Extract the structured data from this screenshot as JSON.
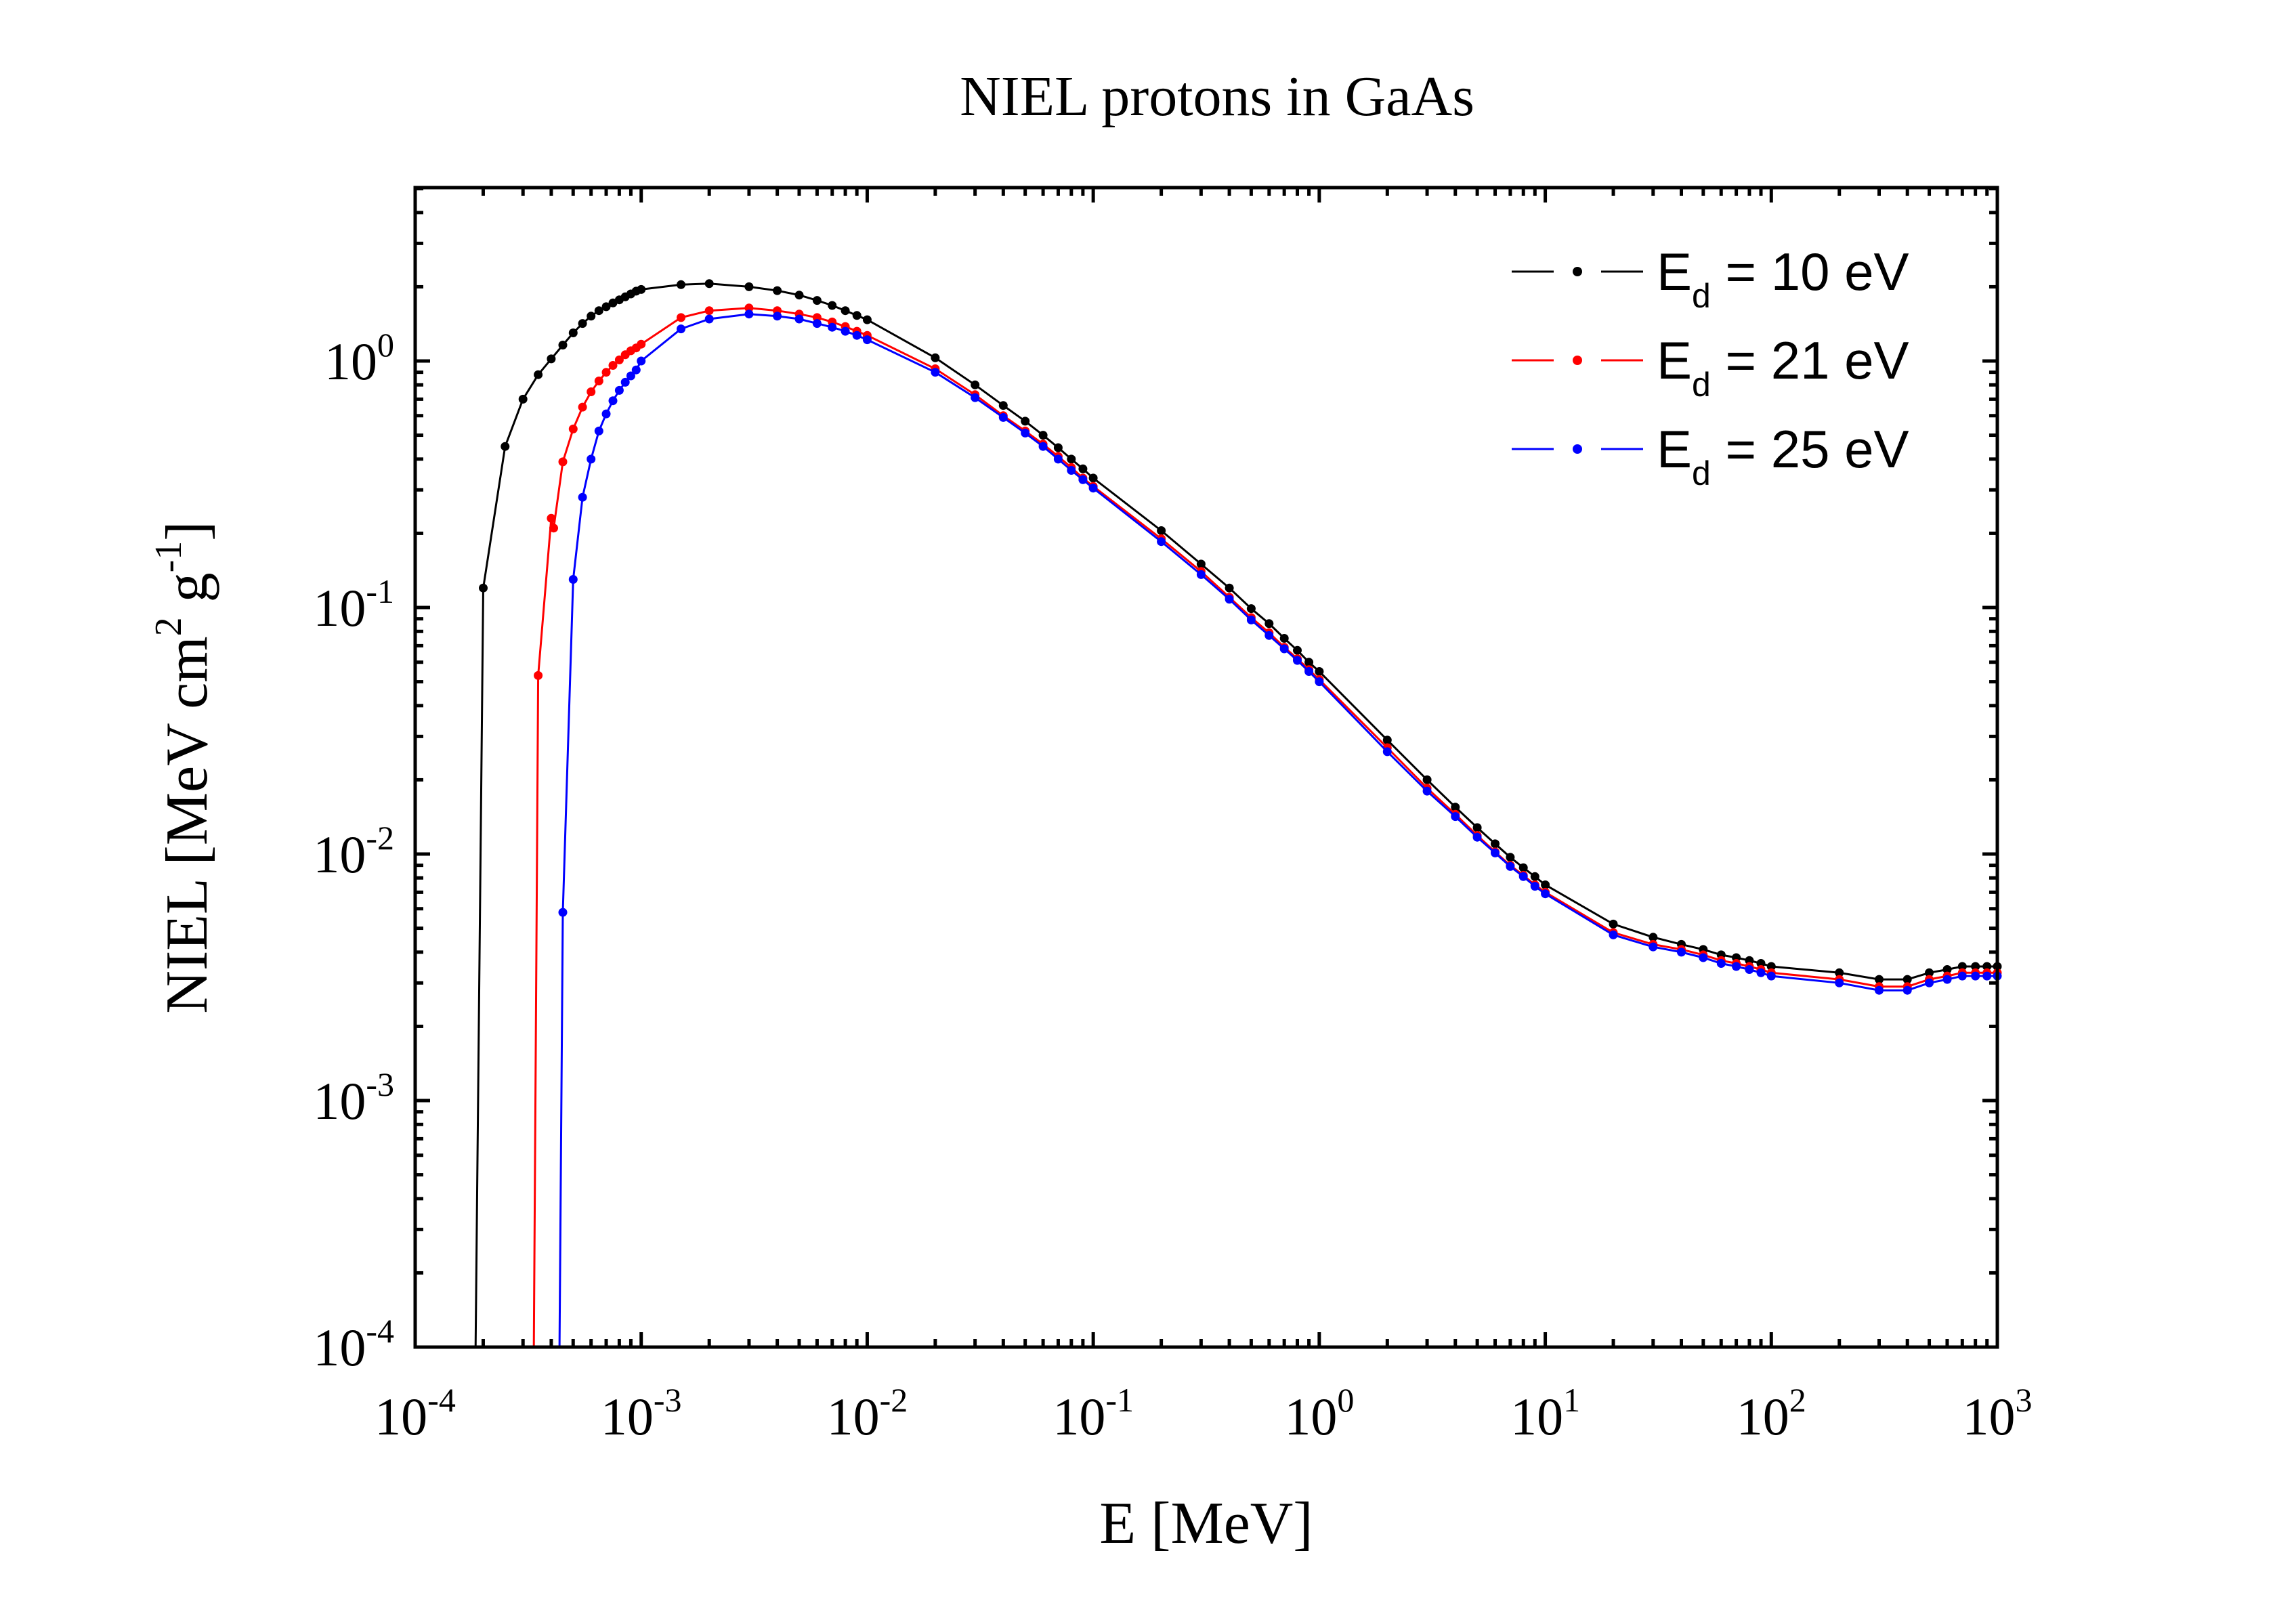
{
  "chart_data": {
    "type": "line",
    "title": "NIEL protons in GaAs",
    "xlabel": "E [MeV]",
    "ylabel": {
      "base": "NIEL [MeV cm",
      "sup1": "2",
      "mid": " g",
      "sup2": "-1",
      "end": "]"
    },
    "xscale": "log",
    "yscale": "log",
    "xlim": [
      0.0001,
      1000
    ],
    "ylim": [
      0.0001,
      5
    ],
    "grid": false,
    "legend_position": "top-right",
    "x_ticks": [
      {
        "base": "10",
        "exp": "-4",
        "value": 0.0001
      },
      {
        "base": "10",
        "exp": "-3",
        "value": 0.001
      },
      {
        "base": "10",
        "exp": "-2",
        "value": 0.01
      },
      {
        "base": "10",
        "exp": "-1",
        "value": 0.1
      },
      {
        "base": "10",
        "exp": "0",
        "value": 1
      },
      {
        "base": "10",
        "exp": "1",
        "value": 10
      },
      {
        "base": "10",
        "exp": "2",
        "value": 100
      },
      {
        "base": "10",
        "exp": "3",
        "value": 1000
      }
    ],
    "y_ticks": [
      {
        "base": "10",
        "exp": "-4",
        "value": 0.0001
      },
      {
        "base": "10",
        "exp": "-3",
        "value": 0.001
      },
      {
        "base": "10",
        "exp": "-2",
        "value": 0.01
      },
      {
        "base": "10",
        "exp": "-1",
        "value": 0.1
      },
      {
        "base": "10",
        "exp": "0",
        "value": 1
      }
    ],
    "series": [
      {
        "name": "E_d = 10 eV",
        "legend_label": {
          "pre": "E",
          "sub": "d",
          "post": " = 10 eV"
        },
        "color": "#000000",
        "curve_start": [
          0.000185,
          0.0001
        ],
        "x": [
          0.0002,
          0.00025,
          0.0003,
          0.00035,
          0.0004,
          0.00045,
          0.0005,
          0.00055,
          0.0006,
          0.00065,
          0.0007,
          0.00075,
          0.0008,
          0.00085,
          0.0009,
          0.00095,
          0.001,
          0.0015,
          0.002,
          0.003,
          0.004,
          0.005,
          0.006,
          0.007,
          0.008,
          0.009,
          0.01,
          0.02,
          0.03,
          0.04,
          0.05,
          0.06,
          0.07,
          0.08,
          0.09,
          0.1,
          0.2,
          0.3,
          0.4,
          0.5,
          0.6,
          0.7,
          0.8,
          0.9,
          1,
          2,
          3,
          4,
          5,
          6,
          7,
          8,
          9,
          10,
          20,
          30,
          40,
          50,
          60,
          70,
          80,
          90,
          100,
          200,
          300,
          400,
          500,
          600,
          700,
          800,
          900,
          1000
        ],
        "y": [
          0.12,
          0.45,
          0.7,
          0.88,
          1.02,
          1.16,
          1.3,
          1.42,
          1.52,
          1.6,
          1.66,
          1.72,
          1.77,
          1.82,
          1.87,
          1.92,
          1.95,
          2.04,
          2.06,
          2.0,
          1.93,
          1.85,
          1.76,
          1.68,
          1.6,
          1.53,
          1.47,
          1.03,
          0.8,
          0.66,
          0.57,
          0.5,
          0.445,
          0.4,
          0.365,
          0.335,
          0.205,
          0.15,
          0.12,
          0.099,
          0.086,
          0.075,
          0.067,
          0.06,
          0.055,
          0.029,
          0.02,
          0.0155,
          0.0128,
          0.011,
          0.0097,
          0.0088,
          0.0081,
          0.0075,
          0.0052,
          0.0046,
          0.0043,
          0.0041,
          0.0039,
          0.0038,
          0.0037,
          0.0036,
          0.0035,
          0.0033,
          0.0031,
          0.0031,
          0.0033,
          0.0034,
          0.0035,
          0.0035,
          0.0035,
          0.0035
        ]
      },
      {
        "name": "E_d = 21 eV",
        "legend_label": {
          "pre": "E",
          "sub": "d",
          "post": " = 21 eV"
        },
        "color": "#ff0000",
        "curve_start": [
          0.000335,
          0.0001
        ],
        "x": [
          0.00035,
          0.0004,
          0.00041,
          0.00045,
          0.0005,
          0.00055,
          0.0006,
          0.00065,
          0.0007,
          0.00075,
          0.0008,
          0.00085,
          0.0009,
          0.00095,
          0.001,
          0.0015,
          0.002,
          0.003,
          0.004,
          0.005,
          0.006,
          0.007,
          0.008,
          0.009,
          0.01,
          0.02,
          0.03,
          0.04,
          0.05,
          0.06,
          0.07,
          0.08,
          0.09,
          0.1,
          0.2,
          0.3,
          0.4,
          0.5,
          0.6,
          0.7,
          0.8,
          0.9,
          1,
          2,
          3,
          4,
          5,
          6,
          7,
          8,
          9,
          10,
          20,
          30,
          40,
          50,
          60,
          70,
          80,
          90,
          100,
          200,
          300,
          400,
          500,
          600,
          700,
          800,
          900,
          1000
        ],
        "y": [
          0.053,
          0.23,
          0.21,
          0.39,
          0.53,
          0.65,
          0.75,
          0.83,
          0.9,
          0.96,
          1.01,
          1.06,
          1.1,
          1.13,
          1.17,
          1.5,
          1.6,
          1.64,
          1.6,
          1.55,
          1.5,
          1.44,
          1.38,
          1.32,
          1.27,
          0.93,
          0.73,
          0.6,
          0.52,
          0.46,
          0.41,
          0.37,
          0.335,
          0.31,
          0.19,
          0.14,
          0.11,
          0.091,
          0.079,
          0.069,
          0.062,
          0.056,
          0.051,
          0.027,
          0.0185,
          0.0145,
          0.0119,
          0.0102,
          0.009,
          0.0082,
          0.0075,
          0.007,
          0.0048,
          0.0043,
          0.0041,
          0.0039,
          0.0037,
          0.0036,
          0.0035,
          0.0034,
          0.0033,
          0.0031,
          0.0029,
          0.0029,
          0.0031,
          0.0032,
          0.0033,
          0.0033,
          0.0033,
          0.0033
        ]
      },
      {
        "name": "E_d = 25 eV",
        "legend_label": {
          "pre": "E",
          "sub": "d",
          "post": " = 25 eV"
        },
        "color": "#0000ff",
        "curve_start": [
          0.000435,
          0.0001
        ],
        "x": [
          0.00045,
          0.0005,
          0.00055,
          0.0006,
          0.00065,
          0.0007,
          0.00075,
          0.0008,
          0.00085,
          0.0009,
          0.00095,
          0.001,
          0.0015,
          0.002,
          0.003,
          0.004,
          0.005,
          0.006,
          0.007,
          0.008,
          0.009,
          0.01,
          0.02,
          0.03,
          0.04,
          0.05,
          0.06,
          0.07,
          0.08,
          0.09,
          0.1,
          0.2,
          0.3,
          0.4,
          0.5,
          0.6,
          0.7,
          0.8,
          0.9,
          1,
          2,
          3,
          4,
          5,
          6,
          7,
          8,
          9,
          10,
          20,
          30,
          40,
          50,
          60,
          70,
          80,
          90,
          100,
          200,
          300,
          400,
          500,
          600,
          700,
          800,
          900,
          1000
        ],
        "y": [
          0.0058,
          0.13,
          0.28,
          0.4,
          0.52,
          0.61,
          0.69,
          0.76,
          0.82,
          0.87,
          0.92,
          1.0,
          1.35,
          1.48,
          1.55,
          1.52,
          1.48,
          1.42,
          1.37,
          1.32,
          1.27,
          1.22,
          0.9,
          0.71,
          0.59,
          0.51,
          0.45,
          0.4,
          0.36,
          0.33,
          0.305,
          0.185,
          0.136,
          0.108,
          0.089,
          0.077,
          0.068,
          0.061,
          0.055,
          0.05,
          0.026,
          0.018,
          0.0142,
          0.0117,
          0.0101,
          0.0089,
          0.0081,
          0.0074,
          0.0069,
          0.0047,
          0.0042,
          0.004,
          0.0038,
          0.0036,
          0.0035,
          0.0034,
          0.0033,
          0.0032,
          0.003,
          0.0028,
          0.0028,
          0.003,
          0.0031,
          0.0032,
          0.0032,
          0.0032,
          0.0032
        ]
      }
    ]
  }
}
